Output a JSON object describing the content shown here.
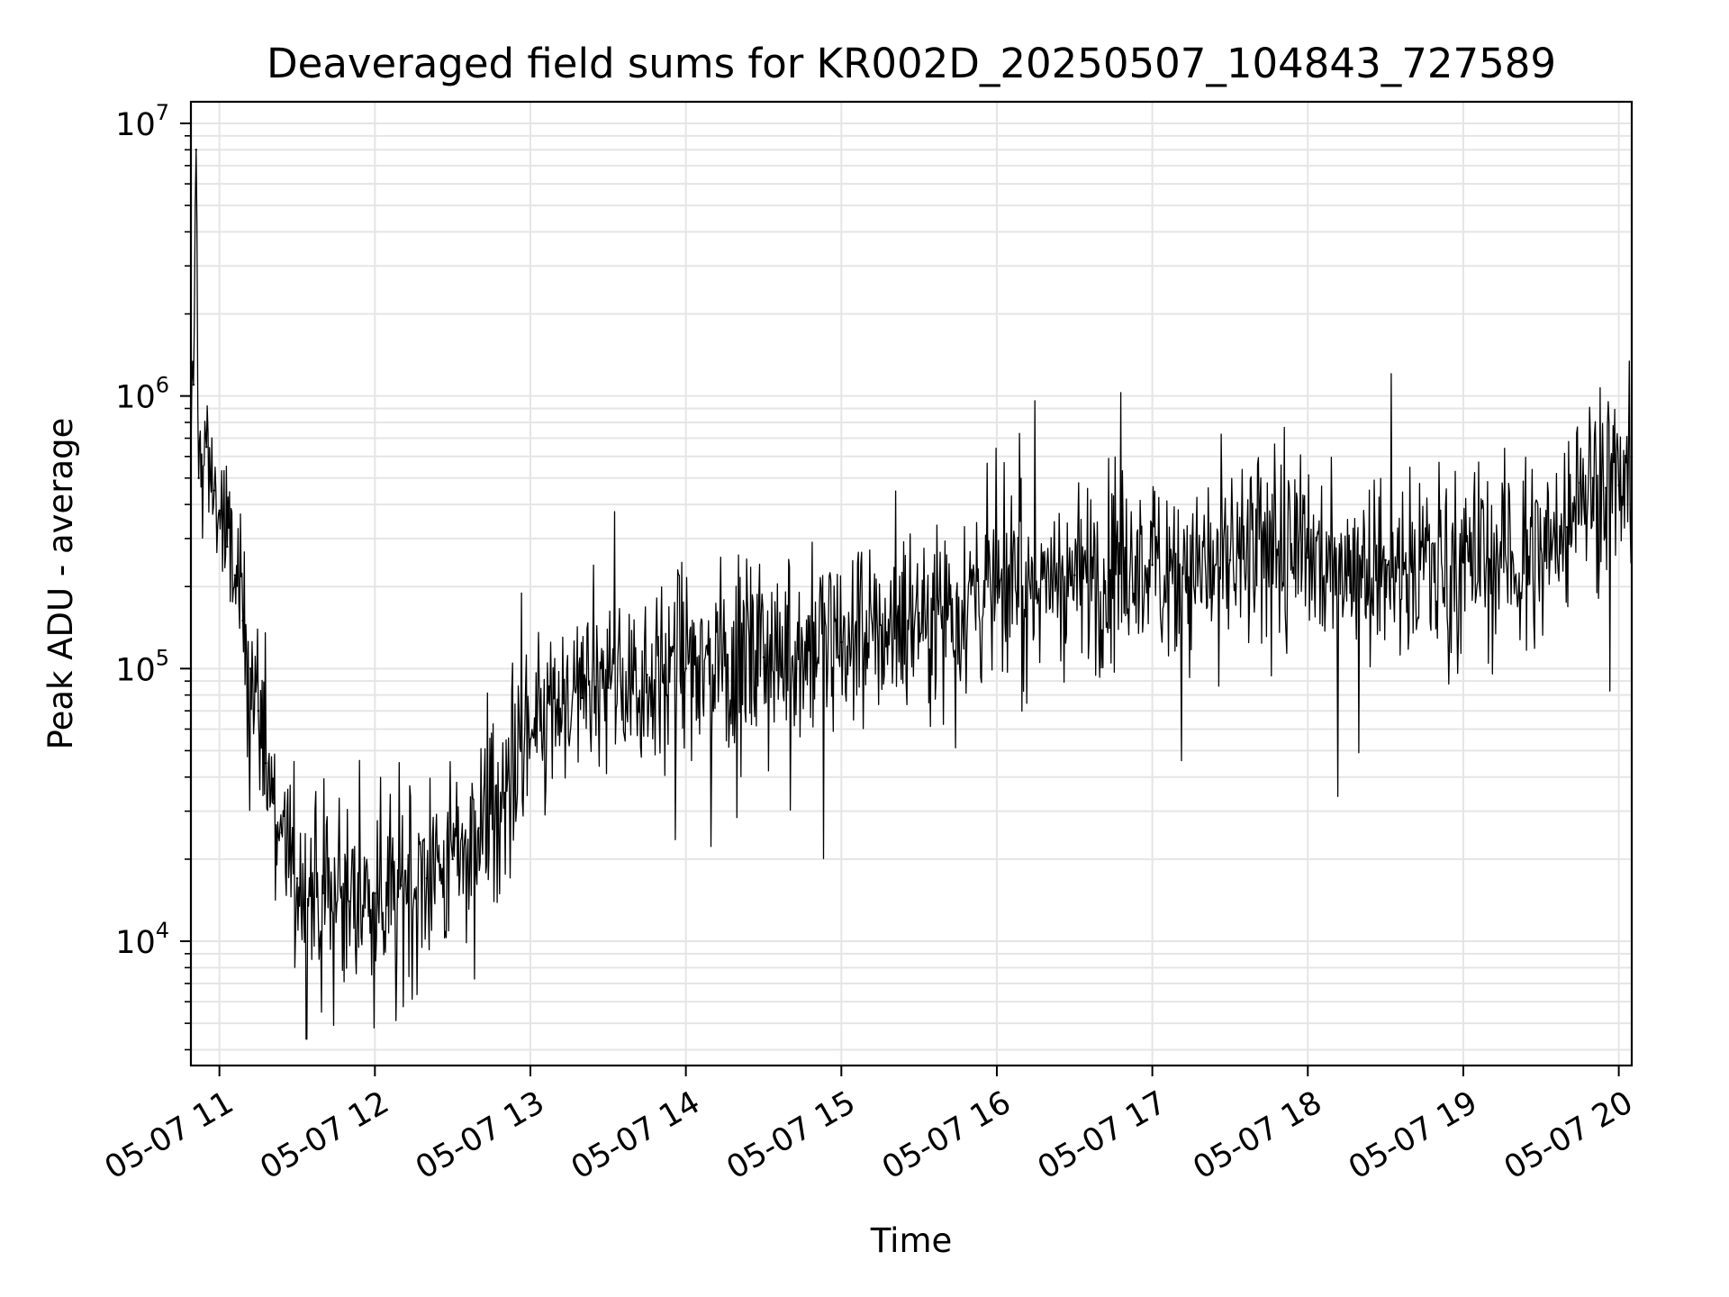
{
  "chart_data": {
    "type": "line",
    "title": "Deaveraged field sums for KR002D_20250507_104843_727589",
    "xlabel": "Time",
    "ylabel": "Peak ADU - average",
    "yscale": "log",
    "ylim": [
      3500,
      12000000
    ],
    "xlim": [
      "2025-05-07T10:49",
      "2025-05-07T20:05"
    ],
    "x_ticks": [
      {
        "value": "2025-05-07T11:00",
        "label": "05-07 11"
      },
      {
        "value": "2025-05-07T12:00",
        "label": "05-07 12"
      },
      {
        "value": "2025-05-07T13:00",
        "label": "05-07 13"
      },
      {
        "value": "2025-05-07T14:00",
        "label": "05-07 14"
      },
      {
        "value": "2025-05-07T15:00",
        "label": "05-07 15"
      },
      {
        "value": "2025-05-07T16:00",
        "label": "05-07 16"
      },
      {
        "value": "2025-05-07T17:00",
        "label": "05-07 17"
      },
      {
        "value": "2025-05-07T18:00",
        "label": "05-07 18"
      },
      {
        "value": "2025-05-07T19:00",
        "label": "05-07 19"
      },
      {
        "value": "2025-05-07T20:00",
        "label": "05-07 20"
      }
    ],
    "y_ticks": [
      {
        "value": 10000,
        "base": "10",
        "exp": "4"
      },
      {
        "value": 100000,
        "base": "10",
        "exp": "5"
      },
      {
        "value": 1000000,
        "base": "10",
        "exp": "6"
      },
      {
        "value": 10000000,
        "base": "10",
        "exp": "7"
      }
    ],
    "grid": true,
    "grid_minor": true,
    "line_color": "#000000",
    "grid_color": "#e5e5e5",
    "series": [
      {
        "points": [
          [
            "2025-05-07T10:49",
            600000
          ],
          [
            "2025-05-07T10:50",
            1100000
          ],
          [
            "2025-05-07T10:51",
            8000000
          ],
          [
            "2025-05-07T10:52",
            500000
          ],
          [
            "2025-05-07T10:55",
            650000
          ],
          [
            "2025-05-07T10:58",
            450000
          ],
          [
            "2025-05-07T11:00",
            380000
          ],
          [
            "2025-05-07T11:03",
            280000
          ],
          [
            "2025-05-07T11:06",
            220000
          ],
          [
            "2025-05-07T11:09",
            150000
          ],
          [
            "2025-05-07T11:12",
            100000
          ],
          [
            "2025-05-07T11:15",
            70000
          ],
          [
            "2025-05-07T11:18",
            45000
          ],
          [
            "2025-05-07T11:21",
            32000
          ],
          [
            "2025-05-07T11:24",
            25000
          ],
          [
            "2025-05-07T11:27",
            20000
          ],
          [
            "2025-05-07T11:30",
            17000
          ],
          [
            "2025-05-07T11:40",
            15000
          ],
          [
            "2025-05-07T11:50",
            14000
          ],
          [
            "2025-05-07T12:00",
            15000
          ],
          [
            "2025-05-07T12:10",
            16000
          ],
          [
            "2025-05-07T12:20",
            17000
          ],
          [
            "2025-05-07T12:30",
            20000
          ],
          [
            "2025-05-07T12:40",
            26000
          ],
          [
            "2025-05-07T12:50",
            35000
          ],
          [
            "2025-05-07T13:00",
            55000
          ],
          [
            "2025-05-07T13:10",
            70000
          ],
          [
            "2025-05-07T13:20",
            78000
          ],
          [
            "2025-05-07T13:30",
            85000
          ],
          [
            "2025-05-07T13:45",
            95000
          ],
          [
            "2025-05-07T14:00",
            100000
          ],
          [
            "2025-05-07T14:30",
            110000
          ],
          [
            "2025-05-07T15:00",
            125000
          ],
          [
            "2025-05-07T15:30",
            160000
          ],
          [
            "2025-05-07T16:00",
            200000
          ],
          [
            "2025-05-07T16:30",
            220000
          ],
          [
            "2025-05-07T17:00",
            240000
          ],
          [
            "2025-05-07T17:30",
            250000
          ],
          [
            "2025-05-07T18:00",
            255000
          ],
          [
            "2025-05-07T18:30",
            250000
          ],
          [
            "2025-05-07T19:00",
            245000
          ],
          [
            "2025-05-07T19:30",
            275000
          ],
          [
            "2025-05-07T19:40",
            330000
          ],
          [
            "2025-05-07T19:45",
            480000
          ],
          [
            "2025-05-07T19:50",
            500000
          ],
          [
            "2025-05-07T19:55",
            460000
          ],
          [
            "2025-05-07T20:00",
            470000
          ],
          [
            "2025-05-07T20:05",
            600000
          ]
        ]
      }
    ]
  }
}
